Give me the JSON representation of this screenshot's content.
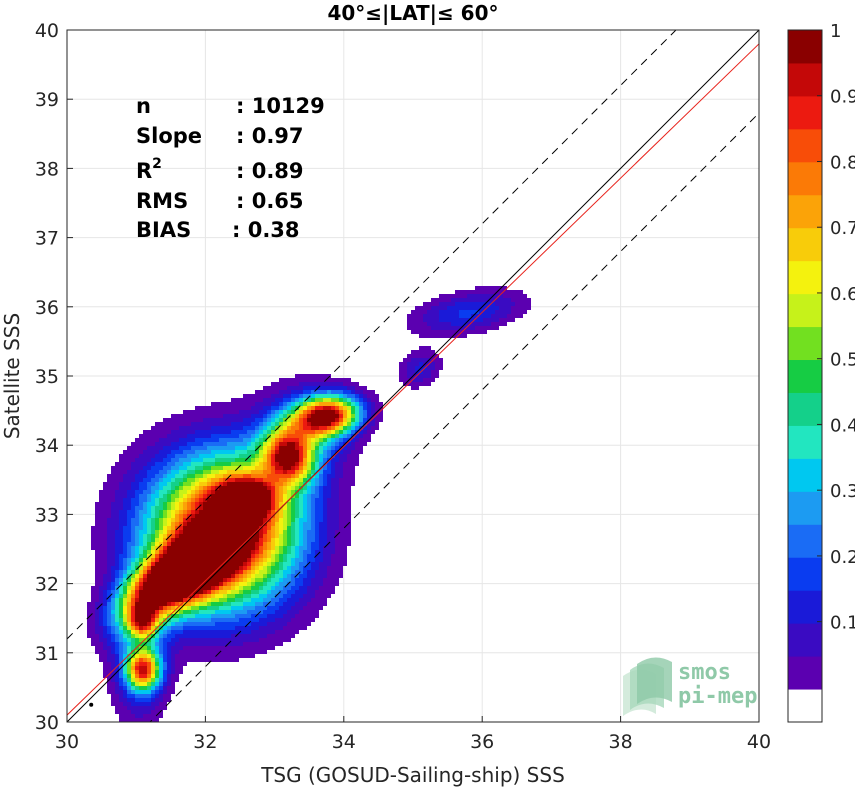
{
  "chart_data": {
    "type": "heatmap",
    "title": "40°≤|LAT|≤ 60°",
    "xlabel": "TSG (GOSUD-Sailing-ship) SSS",
    "ylabel": "Satellite SSS",
    "xlim": [
      30,
      40
    ],
    "ylim": [
      30,
      40
    ],
    "xticks": [
      "30",
      "32",
      "34",
      "36",
      "38",
      "40"
    ],
    "yticks": [
      "30",
      "31",
      "32",
      "33",
      "34",
      "35",
      "36",
      "37",
      "38",
      "39",
      "40"
    ],
    "grid": true,
    "stats": [
      {
        "label": "n",
        "value": ": 10129"
      },
      {
        "label": "Slope",
        "value": ": 0.97"
      },
      {
        "label": "R",
        "sup": "2",
        "value": ": 0.89"
      },
      {
        "label": "RMS",
        "value": ": 0.65"
      },
      {
        "label": "BIAS",
        "value": ": 0.38"
      }
    ],
    "reference_lines": [
      {
        "kind": "one-to-one",
        "color": "#000000",
        "style": "solid",
        "intercept": 0
      },
      {
        "kind": "offset",
        "color": "#000000",
        "style": "dashed",
        "intercept": 1.2
      },
      {
        "kind": "offset",
        "color": "#000000",
        "style": "dashed",
        "intercept": -1.2
      },
      {
        "kind": "regression",
        "color": "#e8221b",
        "style": "solid",
        "slope": 0.97,
        "intercept": 1.0
      }
    ],
    "colorbar": {
      "range": [
        0,
        1
      ],
      "ticks": [
        "0.1",
        "0.2",
        "0.3",
        "0.4",
        "0.5",
        "0.6",
        "0.7",
        "0.8",
        "0.9",
        "1"
      ],
      "colors": [
        "#ffffff",
        "#5b00b0",
        "#3a0bc2",
        "#1a1ad8",
        "#0a3cf0",
        "#1a6cf5",
        "#1c9bf2",
        "#00c8f0",
        "#22e6c0",
        "#14d08a",
        "#16cc44",
        "#72e020",
        "#c6f21a",
        "#f4f20e",
        "#f8cc0a",
        "#fba308",
        "#fb7a06",
        "#f84d08",
        "#ec1a10",
        "#c40808",
        "#8a0000"
      ]
    },
    "density_blobs": [
      {
        "x": 32.2,
        "y": 32.7,
        "sx": 0.75,
        "sy": 0.75,
        "angle": 42,
        "peak": 0.97
      },
      {
        "x": 31.4,
        "y": 32.0,
        "sx": 0.55,
        "sy": 0.25,
        "angle": 38,
        "peak": 0.75
      },
      {
        "x": 31.85,
        "y": 32.2,
        "sx": 0.5,
        "sy": 0.3,
        "angle": 40,
        "peak": 0.55
      },
      {
        "x": 32.6,
        "y": 33.25,
        "sx": 0.28,
        "sy": 0.2,
        "angle": 0,
        "peak": 0.5
      },
      {
        "x": 33.75,
        "y": 34.42,
        "sx": 0.33,
        "sy": 0.2,
        "angle": 8,
        "peak": 0.92
      },
      {
        "x": 33.2,
        "y": 33.85,
        "sx": 0.25,
        "sy": 0.28,
        "angle": 20,
        "peak": 0.72
      },
      {
        "x": 33.45,
        "y": 34.2,
        "sx": 0.45,
        "sy": 0.45,
        "angle": 40,
        "peak": 0.22
      },
      {
        "x": 31.1,
        "y": 30.75,
        "sx": 0.17,
        "sy": 0.2,
        "angle": 0,
        "peak": 0.72
      },
      {
        "x": 31.1,
        "y": 31.45,
        "sx": 0.14,
        "sy": 0.16,
        "angle": 0,
        "peak": 0.48
      },
      {
        "x": 31.05,
        "y": 31.05,
        "sx": 0.28,
        "sy": 0.7,
        "angle": 0,
        "peak": 0.25
      },
      {
        "x": 32.7,
        "y": 33.2,
        "sx": 0.6,
        "sy": 0.6,
        "angle": 40,
        "peak": 0.22
      },
      {
        "x": 35.8,
        "y": 35.92,
        "sx": 0.55,
        "sy": 0.2,
        "angle": 10,
        "peak": 0.2
      },
      {
        "x": 35.1,
        "y": 35.1,
        "sx": 0.22,
        "sy": 0.17,
        "angle": 30,
        "peak": 0.16
      }
    ]
  },
  "logo": {
    "line1": "smos",
    "line2": "pi-mep"
  }
}
